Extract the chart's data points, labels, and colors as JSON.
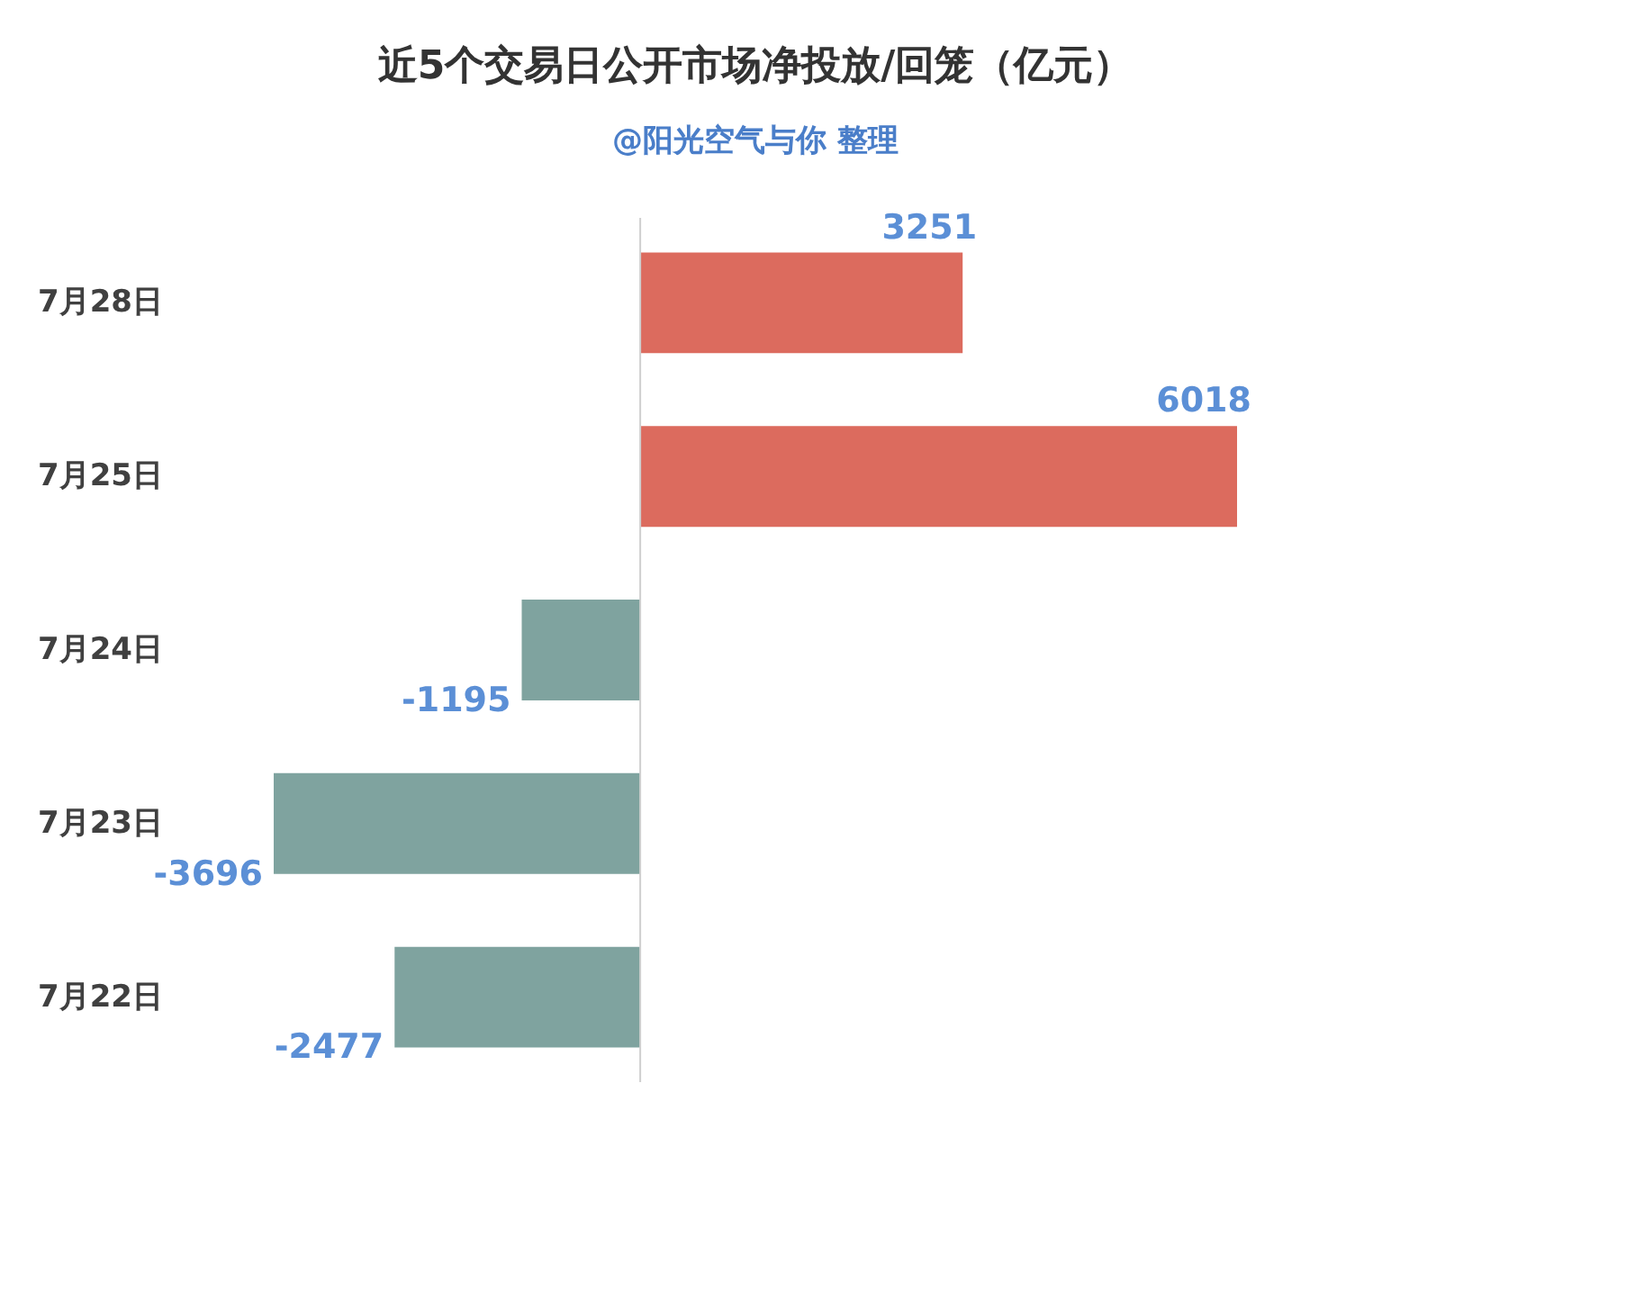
{
  "chart_data": {
    "type": "bar",
    "orientation": "horizontal",
    "title": "近5个交易日公开市场净投放/回笼（亿元）",
    "subtitle": "@阳光空气与你 整理",
    "categories": [
      "7月28日",
      "7月25日",
      "7月24日",
      "7月23日",
      "7月22日"
    ],
    "values": [
      3251,
      6018,
      -1195,
      -3696,
      -2477
    ],
    "colors": [
      "#dc6b5e",
      "#dc6b5e",
      "#7fa39f",
      "#7fa39f",
      "#7fa39f"
    ],
    "data_labels": true,
    "grid": false
  }
}
